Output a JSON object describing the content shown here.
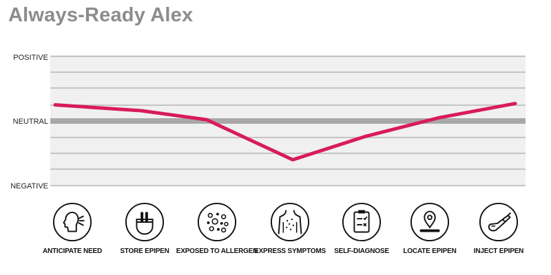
{
  "title": "Always-Ready Alex",
  "chart_data": {
    "type": "line",
    "title": "Always-Ready Alex",
    "y_levels": [
      "POSITIVE",
      "NEUTRAL",
      "NEGATIVE"
    ],
    "ylim": [
      -1,
      1
    ],
    "categories": [
      "ANTICIPATE NEED",
      "STORE EPIPEN",
      "EXPOSED TO ALLERGEN",
      "EXPRESS SYMPTOMS",
      "SELF-DIAGNOSE",
      "LOCATE EPIPEN",
      "INJECT EPIPEN"
    ],
    "series": [
      {
        "values": [
          0.25,
          0.16,
          0.02,
          -0.6,
          -0.24,
          0.05,
          0.27
        ]
      }
    ],
    "grid": true,
    "line_color": "#d81b5b"
  },
  "stages": [
    {
      "label": "ANTICIPATE NEED",
      "icon": "head-thinking-icon"
    },
    {
      "label": "STORE EPIPEN",
      "icon": "pocket-pens-icon"
    },
    {
      "label": "EXPOSED TO ALLERGEN",
      "icon": "allergen-particles-icon"
    },
    {
      "label": "EXPRESS SYMPTOMS",
      "icon": "skin-rash-body-icon"
    },
    {
      "label": "SELF-DIAGNOSE",
      "icon": "checklist-clipboard-icon"
    },
    {
      "label": "LOCATE EPIPEN",
      "icon": "location-pin-icon"
    },
    {
      "label": "INJECT EPIPEN",
      "icon": "injector-pen-icon"
    }
  ]
}
